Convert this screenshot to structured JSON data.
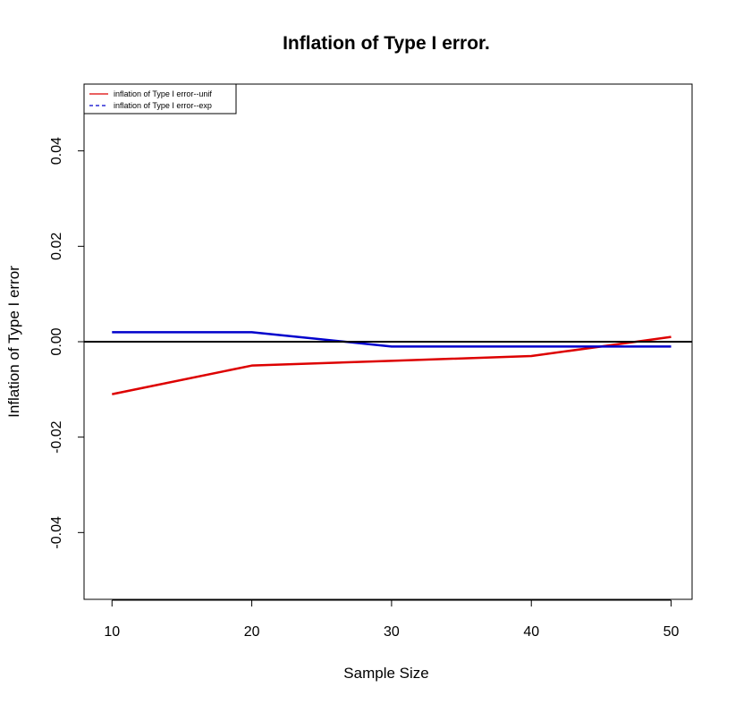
{
  "chart_data": {
    "type": "line",
    "title": "Inflation of Type I error.",
    "xlabel": "Sample Size",
    "ylabel": "Inflation of Type I error",
    "x": [
      10,
      20,
      30,
      40,
      50
    ],
    "xticks": [
      10,
      20,
      30,
      40,
      50
    ],
    "xtick_labels": [
      "10",
      "20",
      "30",
      "40",
      "50"
    ],
    "yticks": [
      -0.04,
      -0.02,
      0.0,
      0.02,
      0.04
    ],
    "ytick_labels": [
      "-0.04",
      "-0.02",
      "0.00",
      "0.02",
      "0.04"
    ],
    "xlim": [
      8,
      51.5
    ],
    "ylim": [
      -0.054,
      0.054
    ],
    "reference_line": {
      "y": 0,
      "color": "#000000"
    },
    "grid": false,
    "legend_position": "top-left",
    "series": [
      {
        "name": "inflation of Type I error--unif",
        "color": "#dd0000",
        "line_style": "solid",
        "values": [
          -0.011,
          -0.005,
          -0.004,
          -0.003,
          0.001
        ]
      },
      {
        "name": "inflation of Type I error--exp",
        "color": "#0000cc",
        "line_style": "dashed",
        "values": [
          0.002,
          0.002,
          -0.001,
          -0.001,
          -0.001
        ]
      }
    ]
  }
}
